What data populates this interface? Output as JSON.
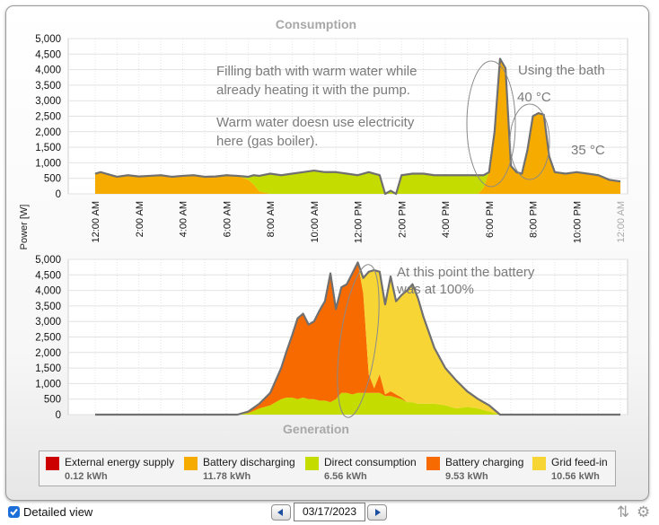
{
  "chart_data": [
    {
      "type": "area",
      "title": "Consumption",
      "ylabel": "Power [W]",
      "ylim": [
        0,
        5000
      ],
      "yticks": [
        "5,000",
        "4,500",
        "4,000",
        "3,500",
        "3,000",
        "2,500",
        "2,000",
        "1,500",
        "1,000",
        "500",
        "0"
      ],
      "xticks": [
        "12:00 AM",
        "2:00 AM",
        "4:00 AM",
        "6:00 AM",
        "8:00 AM",
        "10:00 AM",
        "12:00 PM",
        "2:00 PM",
        "4:00 PM",
        "6:00 PM",
        "8:00 PM",
        "10:00 PM",
        "12:00 AM"
      ],
      "grid": true,
      "x": [
        0,
        0.25,
        0.5,
        1,
        1.5,
        2,
        2.5,
        3,
        3.5,
        4,
        4.5,
        5,
        5.5,
        6,
        6.5,
        7,
        7.25,
        7.5,
        8,
        8.5,
        9,
        9.5,
        10,
        10.5,
        11,
        11.5,
        12,
        12.5,
        13,
        13.25,
        13.5,
        13.75,
        14,
        14.5,
        15,
        15.5,
        16,
        16.5,
        17,
        17.5,
        17.75,
        18,
        18.25,
        18.5,
        18.75,
        19,
        19.25,
        19.5,
        19.75,
        20,
        20.25,
        20.5,
        20.75,
        21,
        21.5,
        22,
        22.5,
        23,
        23.5,
        24
      ],
      "series": [
        {
          "name": "External energy supply",
          "color": "#cc0000",
          "values": [
            0,
            0,
            0,
            0,
            0,
            0,
            0,
            0,
            0,
            0,
            0,
            0,
            0,
            0,
            0,
            0,
            0,
            0,
            0,
            0,
            0,
            0,
            0,
            0,
            0,
            0,
            0,
            0,
            0,
            0,
            0,
            0,
            0,
            0,
            0,
            0,
            0,
            0,
            0,
            0,
            0,
            0,
            0,
            0,
            0,
            0,
            0,
            0,
            0,
            0,
            0,
            0,
            0,
            0,
            0,
            0,
            0,
            0,
            0,
            0
          ]
        },
        {
          "name": "Battery discharging",
          "color": "#f6ab00",
          "values": [
            650,
            700,
            650,
            550,
            600,
            560,
            580,
            600,
            550,
            580,
            600,
            550,
            560,
            600,
            580,
            450,
            300,
            80,
            0,
            0,
            0,
            0,
            0,
            0,
            0,
            0,
            0,
            0,
            0,
            0,
            0,
            0,
            0,
            0,
            0,
            0,
            0,
            0,
            0,
            0,
            200,
            700,
            2000,
            4350,
            4050,
            900,
            700,
            650,
            1400,
            2500,
            2600,
            2550,
            1200,
            700,
            650,
            700,
            650,
            600,
            450,
            400
          ]
        },
        {
          "name": "Direct consumption",
          "color": "#c5dc00",
          "values": [
            0,
            0,
            0,
            0,
            0,
            0,
            0,
            0,
            0,
            0,
            0,
            0,
            0,
            0,
            0,
            100,
            300,
            500,
            650,
            600,
            650,
            700,
            750,
            700,
            700,
            650,
            600,
            700,
            600,
            0,
            100,
            0,
            600,
            650,
            650,
            600,
            600,
            600,
            600,
            600,
            400,
            0,
            0,
            0,
            0,
            0,
            0,
            0,
            0,
            0,
            0,
            0,
            0,
            0,
            0,
            0,
            0,
            0,
            0,
            0
          ]
        }
      ]
    },
    {
      "type": "area",
      "title": "Generation",
      "ylabel": "Power [W]",
      "ylim": [
        0,
        5000
      ],
      "yticks": [
        "5,000",
        "4,500",
        "4,000",
        "3,500",
        "3,000",
        "2,500",
        "2,000",
        "1,500",
        "1,000",
        "500",
        "0"
      ],
      "grid": true,
      "x": [
        0,
        6.5,
        7,
        7.5,
        8,
        8.25,
        8.5,
        8.75,
        9,
        9.25,
        9.5,
        9.75,
        10,
        10.25,
        10.5,
        10.75,
        11,
        11.25,
        11.5,
        11.75,
        12,
        12.25,
        12.5,
        12.75,
        13,
        13.25,
        13.5,
        13.75,
        14,
        14.25,
        14.5,
        14.75,
        15,
        15.5,
        16,
        16.5,
        17,
        17.5,
        18,
        18.5,
        24
      ],
      "series": [
        {
          "name": "Direct consumption",
          "color": "#c5dc00",
          "values": [
            0,
            0,
            50,
            200,
            300,
            400,
            500,
            550,
            550,
            500,
            550,
            500,
            500,
            450,
            450,
            400,
            500,
            700,
            700,
            650,
            700,
            700,
            700,
            700,
            700,
            600,
            600,
            550,
            500,
            400,
            400,
            350,
            350,
            350,
            300,
            200,
            250,
            200,
            100,
            0,
            0
          ]
        },
        {
          "name": "Battery charging",
          "color": "#f76a00",
          "values": [
            0,
            0,
            50,
            150,
            400,
            700,
            1000,
            1500,
            2000,
            2600,
            2700,
            2400,
            2500,
            2900,
            3200,
            4150,
            2900,
            3400,
            3500,
            3900,
            4200,
            3200,
            600,
            150,
            600,
            50,
            150,
            100,
            50,
            0,
            0,
            0,
            0,
            0,
            0,
            0,
            0,
            0,
            0,
            0,
            0
          ]
        },
        {
          "name": "Grid feed-in",
          "color": "#f7d534",
          "values": [
            0,
            0,
            0,
            0,
            0,
            0,
            0,
            0,
            0,
            0,
            0,
            0,
            0,
            0,
            0,
            0,
            0,
            0,
            0,
            0,
            0,
            500,
            3300,
            3800,
            3300,
            2900,
            3700,
            3000,
            3300,
            3600,
            3800,
            3400,
            2800,
            1800,
            1200,
            900,
            500,
            300,
            200,
            0,
            0
          ]
        }
      ]
    }
  ],
  "annotations": [
    {
      "chart": 0,
      "text": "Filling bath with warm water while"
    },
    {
      "chart": 0,
      "text": "already heating it with the pump."
    },
    {
      "chart": 0,
      "text": "Warm water doesn use electricity"
    },
    {
      "chart": 0,
      "text": "here (gas boiler)."
    },
    {
      "chart": 0,
      "text": "Using the bath"
    },
    {
      "chart": 0,
      "text": "40 °C"
    },
    {
      "chart": 0,
      "text": "35 °C"
    },
    {
      "chart": 1,
      "text": "At this point the battery"
    },
    {
      "chart": 1,
      "text": "was at 100%"
    }
  ],
  "legend": [
    {
      "name": "External energy supply",
      "value": "0.12 kWh",
      "color": "#cc0000"
    },
    {
      "name": "Battery discharging",
      "value": "11.78 kWh",
      "color": "#f6ab00"
    },
    {
      "name": "Direct consumption",
      "value": "6.56 kWh",
      "color": "#c5dc00"
    },
    {
      "name": "Battery charging",
      "value": "9.53 kWh",
      "color": "#f76a00"
    },
    {
      "name": "Grid feed-in",
      "value": "10.56 kWh",
      "color": "#f7d534"
    }
  ],
  "controls": {
    "detailed_view_label": "Detailed view",
    "date_value": "03/17/2023",
    "prev_icon": "triangle-left-icon",
    "next_icon": "triangle-right-icon"
  }
}
